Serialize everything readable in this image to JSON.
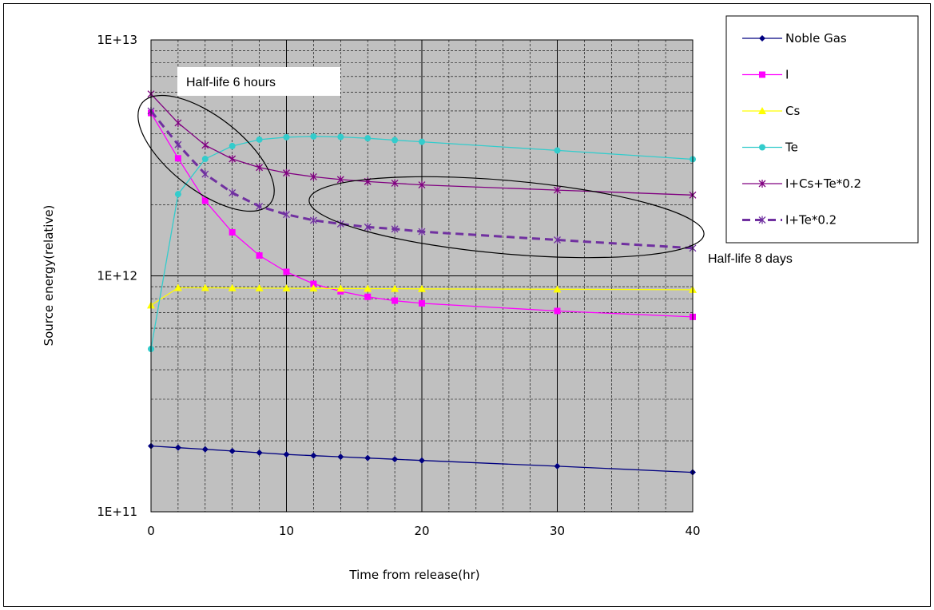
{
  "chart_data": {
    "type": "line",
    "title": "",
    "xlabel": "Time from release(hr)",
    "ylabel": "Source energy(relative)",
    "xlim": [
      0,
      40
    ],
    "ylim": [
      100000000000,
      10000000000000
    ],
    "yscale": "log",
    "grid": true,
    "plot_background": "#c0c0c0",
    "legend_position": "right",
    "x_ticks": [
      "0",
      "10",
      "20",
      "30",
      "40"
    ],
    "y_ticks": [
      "1E+11",
      "1E+12",
      "1E+13"
    ],
    "series": [
      {
        "name": "Noble Gas",
        "color": "#000080",
        "marker": "diamond",
        "dashed": false,
        "x": [
          0,
          2,
          4,
          6,
          8,
          10,
          12,
          14,
          16,
          18,
          20,
          30,
          40
        ],
        "y": [
          190000000000,
          187000000000,
          184000000000,
          181000000000,
          178000000000,
          175000000000,
          173000000000,
          171000000000,
          169000000000,
          167000000000,
          165000000000,
          156000000000,
          147000000000
        ]
      },
      {
        "name": "I",
        "color": "#ff00ff",
        "marker": "square",
        "dashed": false,
        "x": [
          0,
          2,
          4,
          6,
          8,
          10,
          12,
          14,
          16,
          18,
          20,
          30,
          40
        ],
        "y": [
          4900000000000,
          3150000000000,
          2080000000000,
          1530000000000,
          1220000000000,
          1040000000000,
          925000000000,
          860000000000,
          815000000000,
          785000000000,
          765000000000,
          710000000000,
          670000000000
        ]
      },
      {
        "name": "Cs",
        "color": "#ffff00",
        "marker": "triangle",
        "dashed": false,
        "x": [
          0,
          2,
          4,
          6,
          8,
          10,
          12,
          14,
          16,
          18,
          20,
          30,
          40
        ],
        "y": [
          750000000000,
          890000000000,
          890000000000,
          888000000000,
          887000000000,
          886000000000,
          885000000000,
          884000000000,
          883000000000,
          882000000000,
          881000000000,
          877000000000,
          873000000000
        ]
      },
      {
        "name": "Te",
        "color": "#33cccc",
        "marker": "circle",
        "dashed": false,
        "x": [
          0,
          2,
          4,
          6,
          8,
          10,
          12,
          14,
          16,
          18,
          20,
          30,
          40
        ],
        "y": [
          490000000000,
          2220000000000,
          3130000000000,
          3550000000000,
          3780000000000,
          3870000000000,
          3900000000000,
          3880000000000,
          3830000000000,
          3760000000000,
          3700000000000,
          3400000000000,
          3120000000000
        ]
      },
      {
        "name": "I+Cs+Te*0.2",
        "color": "#800080",
        "marker": "star",
        "dashed": false,
        "x": [
          0,
          2,
          4,
          6,
          8,
          10,
          12,
          14,
          16,
          18,
          20,
          30,
          40
        ],
        "y": [
          5900000000000,
          4450000000000,
          3580000000000,
          3130000000000,
          2880000000000,
          2730000000000,
          2630000000000,
          2560000000000,
          2510000000000,
          2470000000000,
          2430000000000,
          2310000000000,
          2200000000000
        ]
      },
      {
        "name": "I+Te*0.2",
        "color": "#7030a0",
        "marker": "star",
        "dashed": true,
        "x": [
          0,
          2,
          4,
          6,
          8,
          10,
          12,
          14,
          16,
          18,
          20,
          30,
          40
        ],
        "y": [
          5000000000000,
          3600000000000,
          2700000000000,
          2250000000000,
          1970000000000,
          1820000000000,
          1720000000000,
          1660000000000,
          1610000000000,
          1580000000000,
          1540000000000,
          1420000000000,
          1310000000000
        ]
      }
    ],
    "annotations": [
      "Half-life 6 hours",
      "Half-life 8 days"
    ]
  }
}
